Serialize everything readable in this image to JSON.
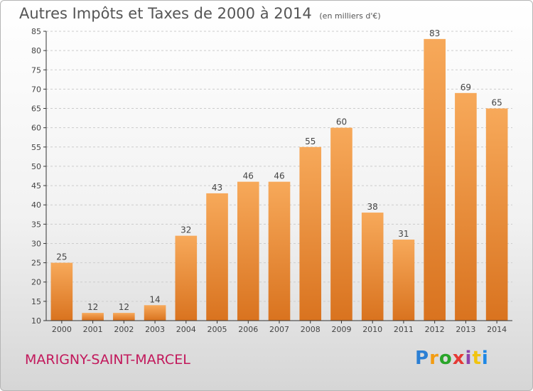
{
  "header": {
    "title": "Autres Impôts et Taxes de 2000 à 2014",
    "unit_note": "(en milliers d'€)"
  },
  "footer": {
    "commune": "MARIGNY-SAINT-MARCEL",
    "logo_text": "Proxiti"
  },
  "colors": {
    "bar_top": "#f7a95a",
    "bar_bottom": "#d9731f",
    "grid": "#cccccc",
    "axis": "#333333",
    "text": "#444444",
    "commune": "#c2185b"
  },
  "chart_data": {
    "type": "bar",
    "title": "Autres Impôts et Taxes de 2000 à 2014",
    "subtitle": "(en milliers d'€)",
    "xlabel": "",
    "ylabel": "",
    "categories": [
      "2000",
      "2001",
      "2002",
      "2003",
      "2004",
      "2005",
      "2006",
      "2007",
      "2008",
      "2009",
      "2010",
      "2011",
      "2012",
      "2013",
      "2014"
    ],
    "values": [
      25,
      12,
      12,
      14,
      32,
      43,
      46,
      46,
      55,
      60,
      38,
      31,
      83,
      69,
      65
    ],
    "data_labels": [
      "25",
      "12",
      "12",
      "14",
      "32",
      "43",
      "46",
      "46",
      "55",
      "60",
      "38",
      "31",
      "83",
      "69",
      "65"
    ],
    "ylim": [
      10,
      85
    ],
    "yticks": [
      10,
      15,
      20,
      25,
      30,
      35,
      40,
      45,
      50,
      55,
      60,
      65,
      70,
      75,
      80,
      85
    ],
    "grid": true,
    "legend": "none"
  }
}
